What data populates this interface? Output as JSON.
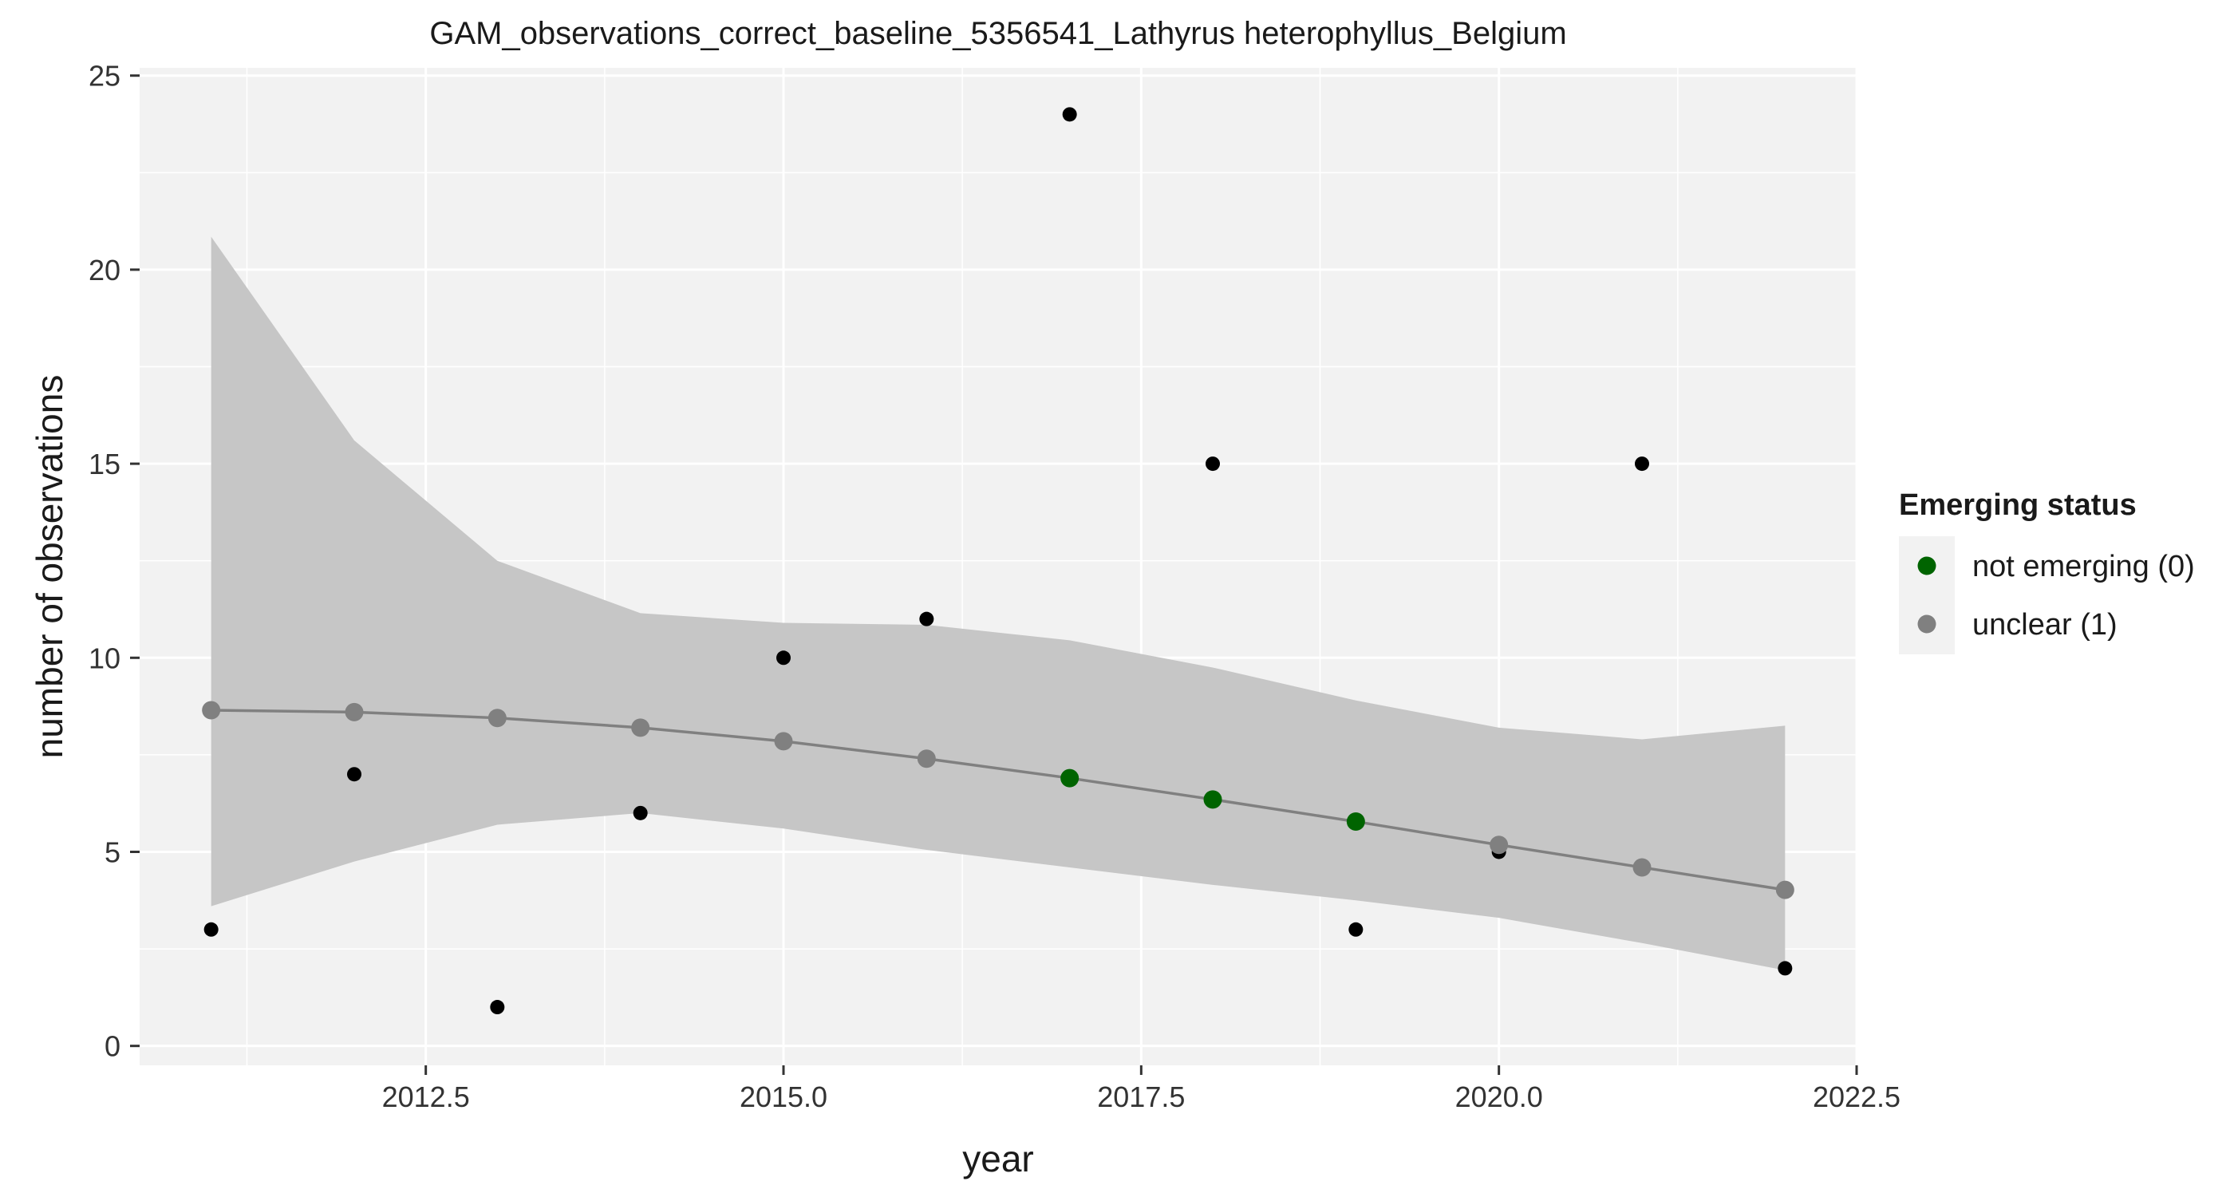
{
  "chart_data": {
    "type": "scatter",
    "title": "GAM_observations_correct_baseline_5356541_Lathyrus heterophyllus_Belgium",
    "xlabel": "year",
    "ylabel": "number of observations",
    "xlim": [
      2010.5,
      2022.5
    ],
    "ylim": [
      -0.5,
      25.2
    ],
    "x_ticks": [
      2012.5,
      2015.0,
      2017.5,
      2020.0,
      2022.5
    ],
    "x_tick_labels": [
      "2012.5",
      "2015.0",
      "2017.5",
      "2020.0",
      "2022.5"
    ],
    "y_ticks": [
      0,
      5,
      10,
      15,
      20,
      25
    ],
    "y_tick_labels": [
      "0",
      "5",
      "10",
      "15",
      "20",
      "25"
    ],
    "grid": true,
    "legend_position": "right",
    "legend": {
      "title": "Emerging status",
      "entries": [
        {
          "label": "not emerging (0)",
          "color": "#006400"
        },
        {
          "label": "unclear (1)",
          "color": "#808080"
        }
      ]
    },
    "observations": {
      "x": [
        2011,
        2012,
        2013,
        2014,
        2015,
        2016,
        2017,
        2018,
        2019,
        2020,
        2021,
        2022
      ],
      "y": [
        3,
        7,
        1,
        6,
        10,
        11,
        24,
        15,
        3,
        5,
        15,
        2
      ],
      "color": "#000000"
    },
    "gam_fit": {
      "x": [
        2011,
        2012,
        2013,
        2014,
        2015,
        2016,
        2017,
        2018,
        2019,
        2020,
        2021,
        2022
      ],
      "y": [
        8.65,
        8.6,
        8.45,
        8.2,
        7.85,
        7.4,
        6.9,
        6.35,
        5.78,
        5.18,
        4.6,
        4.02
      ],
      "status": [
        1,
        1,
        1,
        1,
        1,
        1,
        0,
        0,
        0,
        1,
        1,
        1
      ],
      "line_color": "#808080"
    },
    "confidence_band": {
      "x": [
        2011,
        2012,
        2013,
        2014,
        2015,
        2016,
        2017,
        2018,
        2019,
        2020,
        2021,
        2022
      ],
      "lower": [
        3.6,
        4.75,
        5.7,
        6.0,
        5.6,
        5.05,
        4.6,
        4.15,
        3.75,
        3.3,
        2.65,
        1.95
      ],
      "upper": [
        20.85,
        15.6,
        12.5,
        11.15,
        10.9,
        10.85,
        10.45,
        9.75,
        8.9,
        8.2,
        7.9,
        8.25
      ],
      "color": "#c6c6c6"
    }
  }
}
